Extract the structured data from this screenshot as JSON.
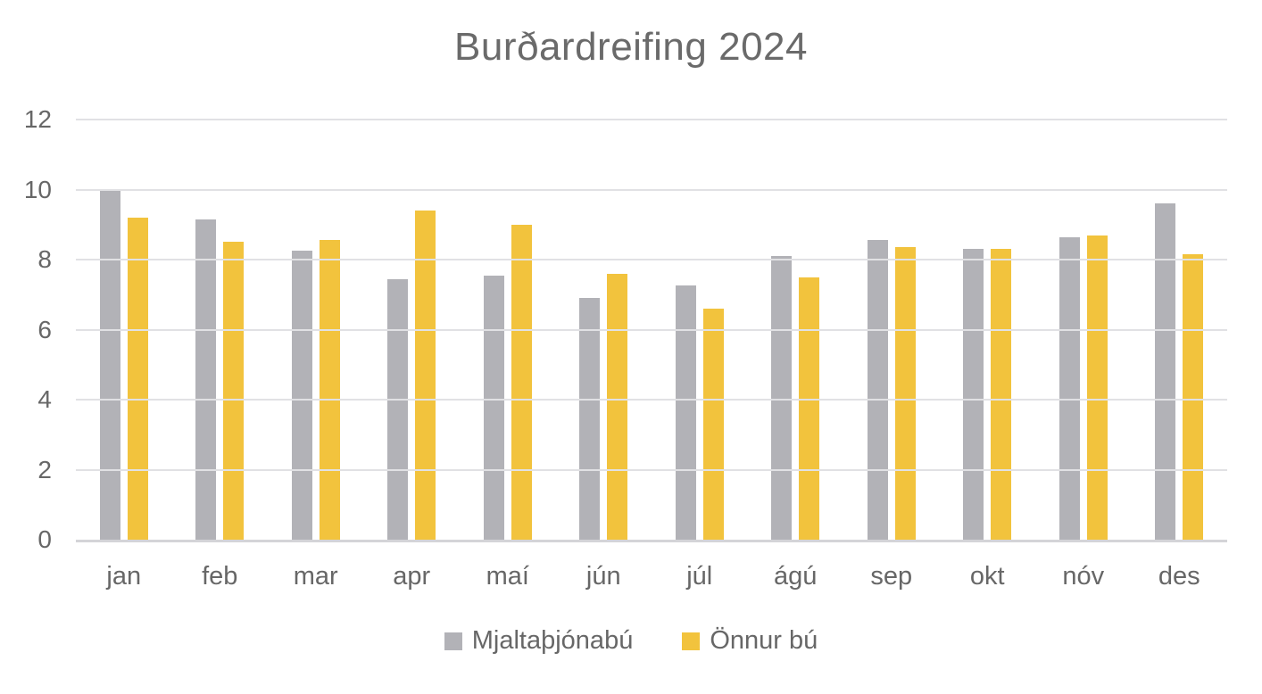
{
  "chart_data": {
    "type": "bar",
    "title": "Burðardreifing 2024",
    "categories": [
      "jan",
      "feb",
      "mar",
      "apr",
      "maí",
      "jún",
      "júl",
      "ágú",
      "sep",
      "okt",
      "nóv",
      "des"
    ],
    "series": [
      {
        "name": "Mjaltaþjónabú",
        "color": "#b2b2b7",
        "values": [
          10.0,
          9.15,
          8.25,
          7.45,
          7.55,
          6.9,
          7.25,
          8.1,
          8.55,
          8.3,
          8.65,
          9.6
        ]
      },
      {
        "name": "Önnur bú",
        "color": "#f2c33d",
        "values": [
          9.2,
          8.5,
          8.55,
          9.4,
          9.0,
          7.6,
          6.6,
          7.5,
          8.35,
          8.3,
          8.7,
          8.15
        ]
      }
    ],
    "ylim": [
      0,
      12
    ],
    "yticks": [
      0,
      2,
      4,
      6,
      8,
      10,
      12
    ],
    "grid": true,
    "legend_position": "bottom",
    "xlabel": "",
    "ylabel": ""
  },
  "colors": {
    "background": "#ffffff",
    "title_text": "#6a6a6a",
    "axis_text": "#676767",
    "gridline": "#e1e1e4",
    "axis_line": "#d4d4d8",
    "series_gray": "#b2b2b7",
    "series_gold": "#f2c33d"
  }
}
